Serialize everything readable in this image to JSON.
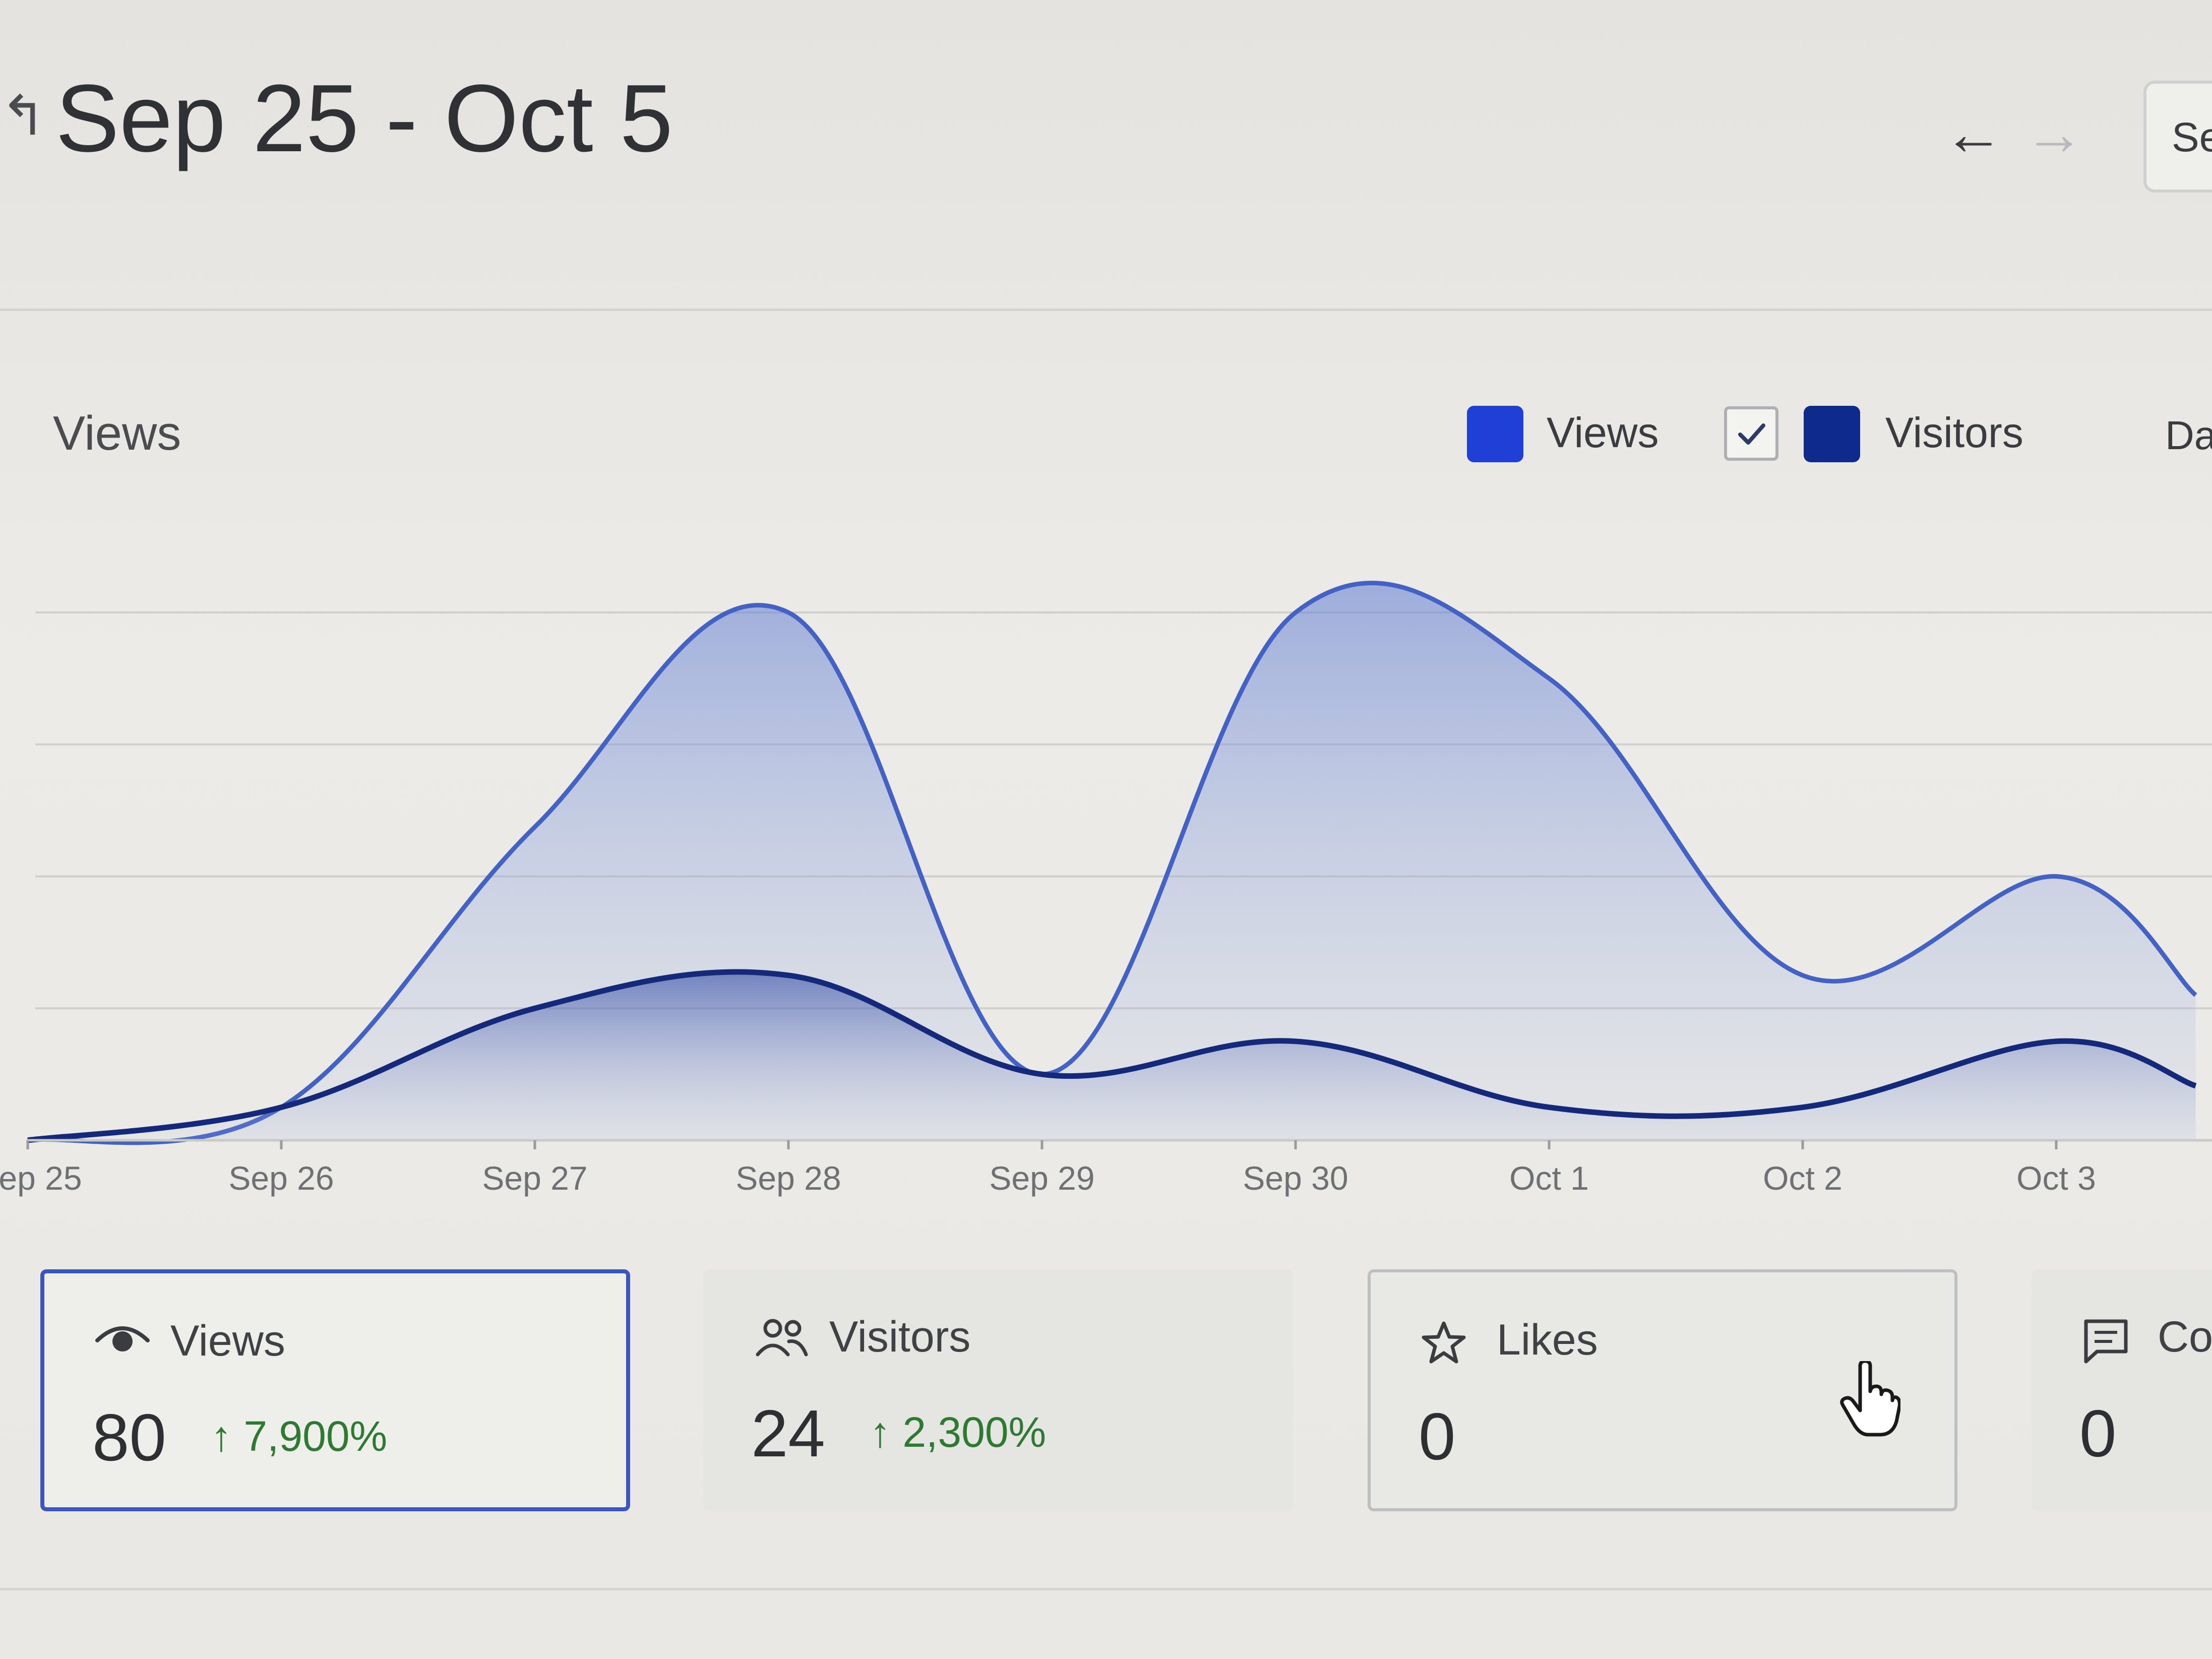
{
  "header": {
    "back_glyph": "↰",
    "date_range": "Sep 25 - Oct 5",
    "prev_glyph": "←",
    "next_glyph": "→",
    "select_label": "Se"
  },
  "chart_section": {
    "title": "Views",
    "legend": [
      {
        "label": "Views",
        "color": "#1f3fd6",
        "checked": true
      },
      {
        "label": "Visitors",
        "color": "#0e2a8c",
        "checked": true
      }
    ],
    "legend_cut_label": "Da"
  },
  "chart_data": {
    "type": "area",
    "x": [
      "ep 25",
      "Sep 26",
      "Sep 27",
      "Sep 28",
      "Sep 29",
      "Sep 30",
      "Oct 1",
      "Oct 2",
      "Oct 3"
    ],
    "series": [
      {
        "name": "Views",
        "values": [
          0,
          2,
          19,
          32,
          4,
          32,
          28,
          10,
          16
        ],
        "color": "#4461c4"
      },
      {
        "name": "Visitors",
        "values": [
          0,
          2,
          8,
          10,
          4,
          6,
          2,
          2,
          6
        ],
        "color": "#14297a"
      }
    ],
    "ylim": [
      0,
      32
    ],
    "grid": true
  },
  "stats": [
    {
      "icon": "eye-icon",
      "label": "Views",
      "value": "80",
      "change": "↑ 7,900%"
    },
    {
      "icon": "users-icon",
      "label": "Visitors",
      "value": "24",
      "change": "↑ 2,300%"
    },
    {
      "icon": "star-icon",
      "label": "Likes",
      "value": "0",
      "change": ""
    },
    {
      "icon": "comment-icon",
      "label": "Co",
      "value": "0",
      "change": ""
    }
  ]
}
